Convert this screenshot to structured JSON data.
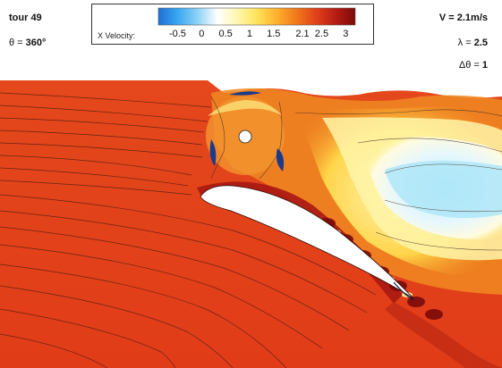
{
  "header": {
    "tour": "tour 49",
    "theta_label": "θ = ",
    "theta_value": "360°",
    "velocity_label": "V = ",
    "velocity_value": "2.1m/s",
    "lambda_label": "λ = ",
    "lambda_value": "2.5",
    "dtheta_label": "Δθ = ",
    "dtheta_value": "1"
  },
  "colorbar": {
    "label": "X Velocity:",
    "ticks": [
      "-0.5",
      "0",
      "0.5",
      "1",
      "1.5",
      "2.1",
      "2.5",
      "3"
    ],
    "range": [
      -0.9,
      3.2
    ],
    "colors": [
      "#1f6fd6",
      "#3aa8f0",
      "#8fd3f5",
      "#ffffff",
      "#fff7b0",
      "#ffe35a",
      "#ffb02e",
      "#f07a1a",
      "#e0421a",
      "#b81c14",
      "#7a0a0a"
    ]
  },
  "field": {
    "background_color": "#e0421a",
    "streamline_color": "#4a1c10",
    "airfoil_color": "#ffffff"
  }
}
